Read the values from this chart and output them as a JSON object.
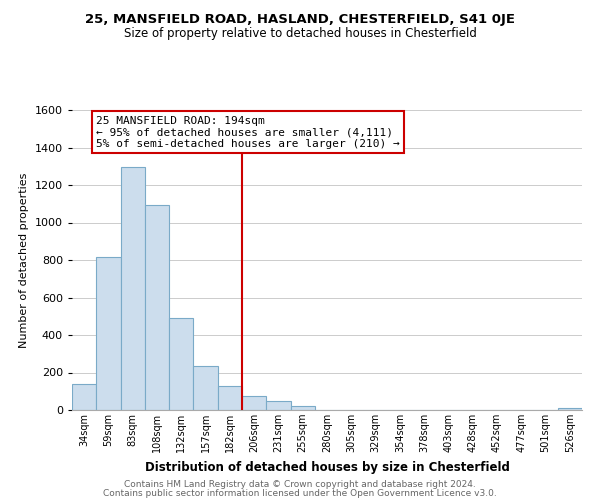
{
  "title1": "25, MANSFIELD ROAD, HASLAND, CHESTERFIELD, S41 0JE",
  "title2": "Size of property relative to detached houses in Chesterfield",
  "xlabel": "Distribution of detached houses by size in Chesterfield",
  "ylabel": "Number of detached properties",
  "bar_color": "#ccdded",
  "bar_edge_color": "#7aaac8",
  "bin_labels": [
    "34sqm",
    "59sqm",
    "83sqm",
    "108sqm",
    "132sqm",
    "157sqm",
    "182sqm",
    "206sqm",
    "231sqm",
    "255sqm",
    "280sqm",
    "305sqm",
    "329sqm",
    "354sqm",
    "378sqm",
    "403sqm",
    "428sqm",
    "452sqm",
    "477sqm",
    "501sqm",
    "526sqm"
  ],
  "bar_heights": [
    140,
    815,
    1295,
    1095,
    490,
    235,
    130,
    75,
    48,
    22,
    0,
    0,
    0,
    0,
    0,
    0,
    0,
    0,
    0,
    0,
    10
  ],
  "ylim": [
    0,
    1600
  ],
  "yticks": [
    0,
    200,
    400,
    600,
    800,
    1000,
    1200,
    1400,
    1600
  ],
  "vline_x": 6.5,
  "vline_color": "#cc0000",
  "annotation_title": "25 MANSFIELD ROAD: 194sqm",
  "annotation_line1": "← 95% of detached houses are smaller (4,111)",
  "annotation_line2": "5% of semi-detached houses are larger (210) →",
  "annotation_box_color": "#ffffff",
  "annotation_box_edge": "#cc0000",
  "footer1": "Contains HM Land Registry data © Crown copyright and database right 2024.",
  "footer2": "Contains public sector information licensed under the Open Government Licence v3.0.",
  "bg_color": "#ffffff",
  "grid_color": "#cccccc"
}
